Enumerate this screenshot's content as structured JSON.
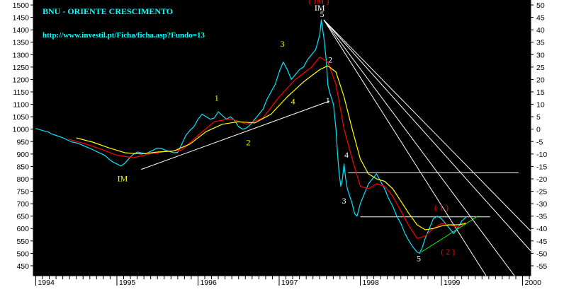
{
  "chart_data": {
    "type": "line",
    "title": "BNU - ORIENTE CRESCIMENTO",
    "subtitle": "http://www.investil.pt/Ficha/ficha.asp?Fundo=13",
    "x_ticks": [
      "1994",
      "1995",
      "1996",
      "1997",
      "1998",
      "1999",
      "2000"
    ],
    "y_left_ticks": [
      1500,
      1450,
      1400,
      1350,
      1300,
      1250,
      1200,
      1150,
      1100,
      1050,
      1000,
      950,
      900,
      850,
      800,
      750,
      700,
      650,
      600,
      550,
      500,
      450
    ],
    "y_right_ticks": [
      50,
      45,
      40,
      35,
      30,
      25,
      20,
      15,
      10,
      5,
      0,
      -5,
      -10,
      -15,
      -20,
      -25,
      -30,
      -35,
      -40,
      -45,
      -50,
      -55
    ],
    "xlim": [
      1993.97,
      2000.1
    ],
    "ylim": [
      410,
      1520
    ],
    "series": [
      {
        "color": "#00e5ff",
        "points": [
          [
            1994.0,
            1003
          ],
          [
            1994.05,
            998
          ],
          [
            1994.1,
            993
          ],
          [
            1994.15,
            990
          ],
          [
            1994.2,
            980
          ],
          [
            1994.25,
            975
          ],
          [
            1994.3,
            969
          ],
          [
            1994.35,
            963
          ],
          [
            1994.4,
            955
          ],
          [
            1994.45,
            948
          ],
          [
            1994.5,
            945
          ],
          [
            1994.55,
            939
          ],
          [
            1994.6,
            932
          ],
          [
            1994.65,
            925
          ],
          [
            1994.7,
            918
          ],
          [
            1994.75,
            910
          ],
          [
            1994.8,
            902
          ],
          [
            1994.85,
            895
          ],
          [
            1994.9,
            880
          ],
          [
            1994.95,
            868
          ],
          [
            1995.0,
            860
          ],
          [
            1995.05,
            852
          ],
          [
            1995.1,
            863
          ],
          [
            1995.15,
            882
          ],
          [
            1995.2,
            898
          ],
          [
            1995.25,
            908
          ],
          [
            1995.3,
            905
          ],
          [
            1995.35,
            900
          ],
          [
            1995.4,
            908
          ],
          [
            1995.45,
            916
          ],
          [
            1995.5,
            924
          ],
          [
            1995.55,
            922
          ],
          [
            1995.6,
            915
          ],
          [
            1995.65,
            910
          ],
          [
            1995.7,
            905
          ],
          [
            1995.75,
            907
          ],
          [
            1995.8,
            940
          ],
          [
            1995.85,
            975
          ],
          [
            1995.9,
            995
          ],
          [
            1995.95,
            1010
          ],
          [
            1996.0,
            1040
          ],
          [
            1996.05,
            1060
          ],
          [
            1996.1,
            1050
          ],
          [
            1996.15,
            1040
          ],
          [
            1996.2,
            1045
          ],
          [
            1996.25,
            1070
          ],
          [
            1996.3,
            1055
          ],
          [
            1996.35,
            1040
          ],
          [
            1996.4,
            1050
          ],
          [
            1996.45,
            1035
          ],
          [
            1996.5,
            1010
          ],
          [
            1996.55,
            1000
          ],
          [
            1996.6,
            1005
          ],
          [
            1996.65,
            1020
          ],
          [
            1996.7,
            1040
          ],
          [
            1996.75,
            1060
          ],
          [
            1996.8,
            1080
          ],
          [
            1996.85,
            1120
          ],
          [
            1996.9,
            1150
          ],
          [
            1996.95,
            1180
          ],
          [
            1997.0,
            1230
          ],
          [
            1997.05,
            1270
          ],
          [
            1997.1,
            1240
          ],
          [
            1997.15,
            1200
          ],
          [
            1997.2,
            1220
          ],
          [
            1997.25,
            1240
          ],
          [
            1997.3,
            1250
          ],
          [
            1997.35,
            1280
          ],
          [
            1997.4,
            1300
          ],
          [
            1997.45,
            1320
          ],
          [
            1997.5,
            1380
          ],
          [
            1997.52,
            1440
          ],
          [
            1997.55,
            1370
          ],
          [
            1997.58,
            1280
          ],
          [
            1997.6,
            1180
          ],
          [
            1997.62,
            1150
          ],
          [
            1997.65,
            1120
          ],
          [
            1997.67,
            1100
          ],
          [
            1997.7,
            1000
          ],
          [
            1997.72,
            900
          ],
          [
            1997.74,
            820
          ],
          [
            1997.76,
            770
          ],
          [
            1997.78,
            800
          ],
          [
            1997.8,
            860
          ],
          [
            1997.82,
            800
          ],
          [
            1997.84,
            760
          ],
          [
            1997.86,
            740
          ],
          [
            1997.88,
            720
          ],
          [
            1997.9,
            700
          ],
          [
            1997.93,
            660
          ],
          [
            1997.96,
            650
          ],
          [
            1998.0,
            700
          ],
          [
            1998.05,
            740
          ],
          [
            1998.1,
            780
          ],
          [
            1998.15,
            800
          ],
          [
            1998.2,
            820
          ],
          [
            1998.25,
            790
          ],
          [
            1998.3,
            760
          ],
          [
            1998.35,
            720
          ],
          [
            1998.4,
            690
          ],
          [
            1998.45,
            650
          ],
          [
            1998.5,
            620
          ],
          [
            1998.55,
            580
          ],
          [
            1998.6,
            550
          ],
          [
            1998.65,
            525
          ],
          [
            1998.7,
            505
          ],
          [
            1998.73,
            500
          ],
          [
            1998.76,
            520
          ],
          [
            1998.8,
            560
          ],
          [
            1998.85,
            600
          ],
          [
            1998.9,
            640
          ],
          [
            1998.95,
            650
          ],
          [
            1999.0,
            640
          ],
          [
            1999.05,
            620
          ],
          [
            1999.1,
            600
          ],
          [
            1999.15,
            580
          ],
          [
            1999.2,
            600
          ],
          [
            1999.25,
            630
          ],
          [
            1999.3,
            645
          ]
        ]
      },
      {
        "color": "#ff0000",
        "points": [
          [
            1994.4,
            960
          ],
          [
            1994.6,
            942
          ],
          [
            1994.8,
            920
          ],
          [
            1995.0,
            895
          ],
          [
            1995.2,
            885
          ],
          [
            1995.4,
            900
          ],
          [
            1995.6,
            910
          ],
          [
            1995.8,
            916
          ],
          [
            1996.0,
            975
          ],
          [
            1996.2,
            1030
          ],
          [
            1996.4,
            1042
          ],
          [
            1996.6,
            1020
          ],
          [
            1996.8,
            1045
          ],
          [
            1997.0,
            1130
          ],
          [
            1997.2,
            1200
          ],
          [
            1997.4,
            1250
          ],
          [
            1997.5,
            1290
          ],
          [
            1997.6,
            1270
          ],
          [
            1997.7,
            1180
          ],
          [
            1997.8,
            1000
          ],
          [
            1997.9,
            880
          ],
          [
            1998.0,
            770
          ],
          [
            1998.1,
            760
          ],
          [
            1998.2,
            780
          ],
          [
            1998.3,
            770
          ],
          [
            1998.4,
            730
          ],
          [
            1998.5,
            670
          ],
          [
            1998.6,
            610
          ],
          [
            1998.7,
            560
          ],
          [
            1998.8,
            570
          ],
          [
            1998.9,
            600
          ],
          [
            1999.0,
            620
          ],
          [
            1999.1,
            615
          ],
          [
            1999.2,
            605
          ],
          [
            1999.3,
            625
          ]
        ]
      },
      {
        "color": "#ffff00",
        "points": [
          [
            1994.5,
            965
          ],
          [
            1994.7,
            948
          ],
          [
            1994.9,
            925
          ],
          [
            1995.1,
            905
          ],
          [
            1995.3,
            900
          ],
          [
            1995.5,
            908
          ],
          [
            1995.7,
            912
          ],
          [
            1995.9,
            940
          ],
          [
            1996.1,
            990
          ],
          [
            1996.3,
            1020
          ],
          [
            1996.5,
            1030
          ],
          [
            1996.7,
            1025
          ],
          [
            1996.9,
            1060
          ],
          [
            1997.1,
            1130
          ],
          [
            1997.3,
            1190
          ],
          [
            1997.5,
            1240
          ],
          [
            1997.6,
            1255
          ],
          [
            1997.7,
            1230
          ],
          [
            1997.8,
            1130
          ],
          [
            1997.9,
            1000
          ],
          [
            1998.0,
            880
          ],
          [
            1998.1,
            820
          ],
          [
            1998.2,
            800
          ],
          [
            1998.3,
            790
          ],
          [
            1998.4,
            760
          ],
          [
            1998.5,
            710
          ],
          [
            1998.6,
            660
          ],
          [
            1998.7,
            615
          ],
          [
            1998.8,
            595
          ],
          [
            1998.9,
            600
          ],
          [
            1999.0,
            610
          ],
          [
            1999.1,
            615
          ],
          [
            1999.2,
            615
          ],
          [
            1999.3,
            620
          ]
        ]
      }
    ],
    "trend_lines": [
      {
        "color": "#ffffff",
        "from": [
          1995.3,
          838
        ],
        "to": [
          1997.62,
          1113
        ]
      },
      {
        "color": "#ffffff",
        "from": [
          1997.85,
          824
        ],
        "to": [
          1999.95,
          824
        ]
      },
      {
        "color": "#ffffff",
        "from": [
          1998.0,
          647
        ],
        "to": [
          1999.6,
          647
        ]
      },
      {
        "color": "#00ff00",
        "from": [
          1998.75,
          505
        ],
        "to": [
          1999.45,
          650
        ]
      },
      {
        "color": "#ffffff",
        "from": [
          1997.55,
          1440
        ],
        "to": [
          1999.55,
          410
        ]
      },
      {
        "color": "#ffffff",
        "from": [
          1997.55,
          1440
        ],
        "to": [
          1999.9,
          410
        ]
      },
      {
        "color": "#ffffff",
        "from": [
          1997.55,
          1440
        ],
        "to": [
          2000.1,
          510
        ]
      },
      {
        "color": "#ffffff",
        "from": [
          1997.55,
          1440
        ],
        "to": [
          2000.1,
          590
        ]
      }
    ],
    "annotations": [
      {
        "text": "( IM )",
        "x": 1997.49,
        "y": 1505,
        "color": "#ff0000"
      },
      {
        "text": "IM",
        "x": 1997.5,
        "y": 1478,
        "color": "#ffffff"
      },
      {
        "text": "5",
        "x": 1997.53,
        "y": 1452,
        "color": "#ffffff"
      },
      {
        "text": "2",
        "x": 1997.63,
        "y": 1268,
        "color": "#ffffff"
      },
      {
        "text": "1",
        "x": 1997.6,
        "y": 1105,
        "color": "#ffffff"
      },
      {
        "text": "3",
        "x": 1997.04,
        "y": 1332,
        "color": "#ffff00"
      },
      {
        "text": "1",
        "x": 1996.23,
        "y": 1115,
        "color": "#ffff00"
      },
      {
        "text": "4",
        "x": 1997.17,
        "y": 1100,
        "color": "#ffff00"
      },
      {
        "text": "2",
        "x": 1996.62,
        "y": 935,
        "color": "#ffff00"
      },
      {
        "text": "IM",
        "x": 1995.07,
        "y": 790,
        "color": "#ffff00"
      },
      {
        "text": "4",
        "x": 1997.83,
        "y": 885,
        "color": "#ffffff"
      },
      {
        "text": "3",
        "x": 1997.8,
        "y": 700,
        "color": "#ffffff"
      },
      {
        "text": "5",
        "x": 1998.72,
        "y": 468,
        "color": "#ffffff"
      },
      {
        "text": "( 1 )",
        "x": 1999.0,
        "y": 673,
        "color": "#ff0000"
      },
      {
        "text": "( 2 )",
        "x": 1999.08,
        "y": 495,
        "color": "#ff0000"
      }
    ]
  }
}
